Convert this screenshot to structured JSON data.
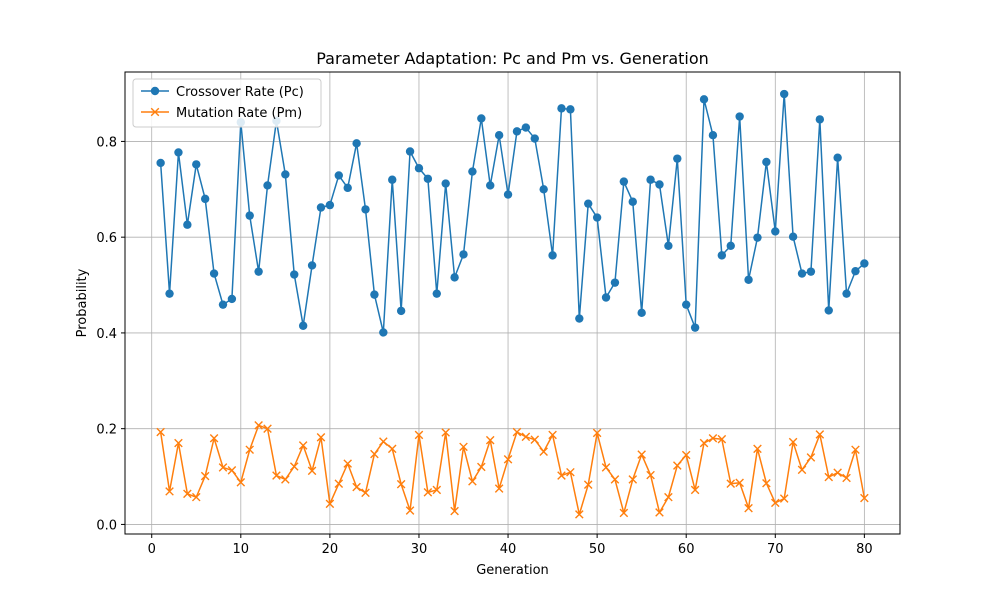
{
  "chart_data": {
    "type": "line",
    "title": "Parameter Adaptation: Pc and Pm vs. Generation",
    "xlabel": "Generation",
    "ylabel": "Probability",
    "xlim": [
      -3,
      84
    ],
    "ylim": [
      -0.02,
      0.945
    ],
    "xticks": [
      0,
      10,
      20,
      30,
      40,
      50,
      60,
      70,
      80
    ],
    "yticks": [
      0.0,
      0.2,
      0.4,
      0.6,
      0.8
    ],
    "ytick_labels": [
      "0.0",
      "0.2",
      "0.4",
      "0.6",
      "0.8"
    ],
    "grid": true,
    "legend": "top-left",
    "x": [
      1,
      2,
      3,
      4,
      5,
      6,
      7,
      8,
      9,
      10,
      11,
      12,
      13,
      14,
      15,
      16,
      17,
      18,
      19,
      20,
      21,
      22,
      23,
      24,
      25,
      26,
      27,
      28,
      29,
      30,
      31,
      32,
      33,
      34,
      35,
      36,
      37,
      38,
      39,
      40,
      41,
      42,
      43,
      44,
      45,
      46,
      47,
      48,
      49,
      50,
      51,
      52,
      53,
      54,
      55,
      56,
      57,
      58,
      59,
      60,
      61,
      62,
      63,
      64,
      65,
      66,
      67,
      68,
      69,
      70,
      71,
      72,
      73,
      74,
      75,
      76,
      77,
      78,
      79,
      80
    ],
    "series": [
      {
        "name": "Crossover Rate (Pc)",
        "color": "#1f77b4",
        "marker": "circle",
        "values": [
          0.755,
          0.482,
          0.777,
          0.626,
          0.752,
          0.68,
          0.524,
          0.459,
          0.471,
          0.84,
          0.645,
          0.528,
          0.708,
          0.843,
          0.731,
          0.522,
          0.415,
          0.541,
          0.662,
          0.667,
          0.729,
          0.703,
          0.796,
          0.658,
          0.48,
          0.401,
          0.72,
          0.446,
          0.779,
          0.744,
          0.722,
          0.482,
          0.712,
          0.516,
          0.564,
          0.737,
          0.848,
          0.708,
          0.813,
          0.689,
          0.821,
          0.829,
          0.806,
          0.7,
          0.562,
          0.869,
          0.867,
          0.43,
          0.67,
          0.641,
          0.474,
          0.505,
          0.716,
          0.674,
          0.442,
          0.72,
          0.71,
          0.582,
          0.764,
          0.459,
          0.411,
          0.888,
          0.813,
          0.562,
          0.582,
          0.852,
          0.511,
          0.599,
          0.757,
          0.612,
          0.899,
          0.601,
          0.524,
          0.528,
          0.846,
          0.447,
          0.766,
          0.482,
          0.529,
          0.545
        ]
      },
      {
        "name": "Mutation Rate (Pm)",
        "color": "#ff7f0e",
        "marker": "x",
        "values": [
          0.193,
          0.069,
          0.17,
          0.064,
          0.057,
          0.101,
          0.18,
          0.119,
          0.113,
          0.088,
          0.156,
          0.207,
          0.2,
          0.102,
          0.094,
          0.121,
          0.165,
          0.112,
          0.182,
          0.043,
          0.085,
          0.127,
          0.078,
          0.066,
          0.147,
          0.173,
          0.158,
          0.084,
          0.029,
          0.187,
          0.067,
          0.072,
          0.192,
          0.028,
          0.162,
          0.09,
          0.12,
          0.176,
          0.075,
          0.136,
          0.193,
          0.183,
          0.177,
          0.152,
          0.187,
          0.102,
          0.109,
          0.021,
          0.083,
          0.191,
          0.119,
          0.094,
          0.024,
          0.094,
          0.146,
          0.103,
          0.025,
          0.057,
          0.123,
          0.145,
          0.072,
          0.17,
          0.18,
          0.178,
          0.085,
          0.087,
          0.034,
          0.158,
          0.086,
          0.045,
          0.054,
          0.172,
          0.114,
          0.14,
          0.188,
          0.099,
          0.108,
          0.097,
          0.156,
          0.055
        ]
      }
    ]
  }
}
